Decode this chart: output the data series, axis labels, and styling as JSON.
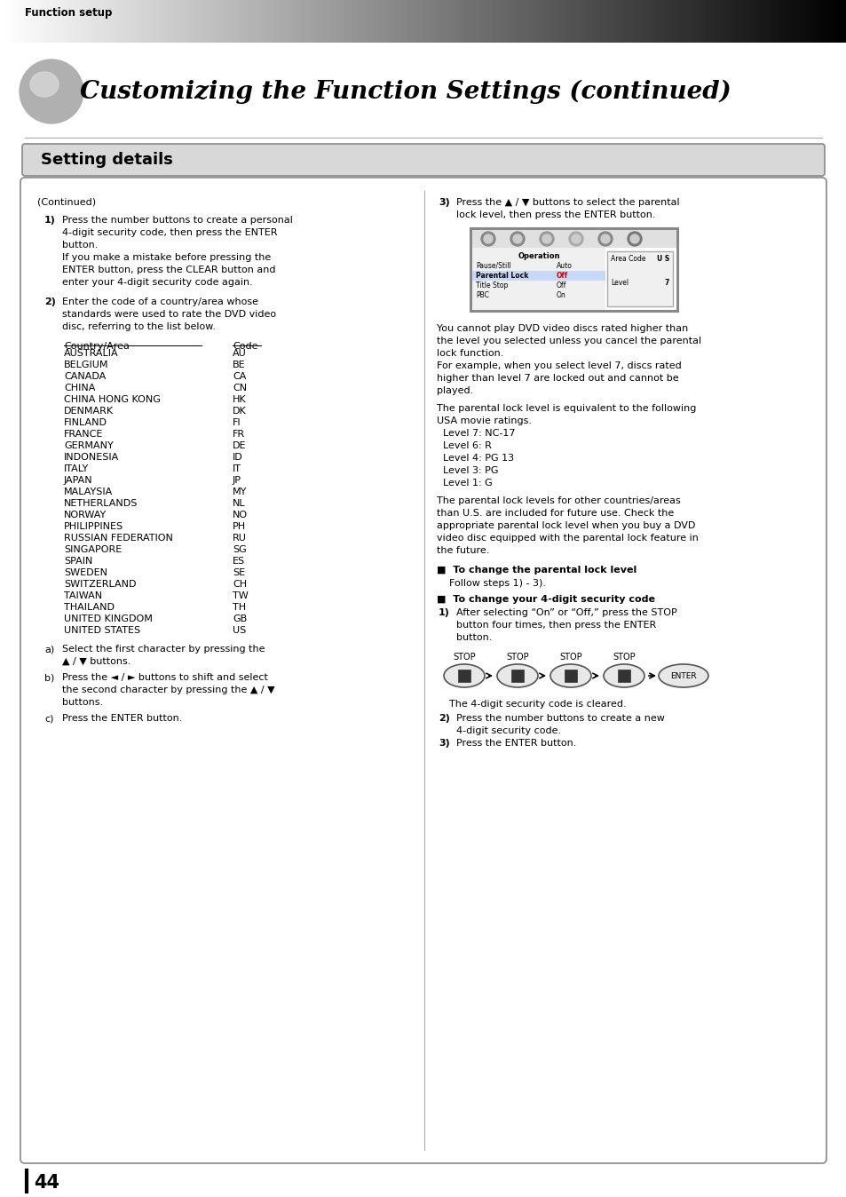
{
  "page_bg": "#ffffff",
  "header_text": "Function setup",
  "title": "Customizing the Function Settings (continued)",
  "section_header": "Setting details",
  "left_col": {
    "continued": "(Continued)",
    "item1_label": "1)",
    "item1_text_lines": [
      "Press the number buttons to create a personal",
      "4-digit security code, then press the ENTER",
      "button.",
      "If you make a mistake before pressing the",
      "ENTER button, press the CLEAR button and",
      "enter your 4-digit security code again."
    ],
    "item2_label": "2)",
    "item2_text_lines": [
      "Enter the code of a country/area whose",
      "standards were used to rate the DVD video",
      "disc, referring to the list below."
    ],
    "table_header": [
      "Country/Area",
      "Code"
    ],
    "table_data": [
      [
        "AUSTRALIA",
        "AU"
      ],
      [
        "BELGIUM",
        "BE"
      ],
      [
        "CANADA",
        "CA"
      ],
      [
        "CHINA",
        "CN"
      ],
      [
        "CHINA HONG KONG",
        "HK"
      ],
      [
        "DENMARK",
        "DK"
      ],
      [
        "FINLAND",
        "FI"
      ],
      [
        "FRANCE",
        "FR"
      ],
      [
        "GERMANY",
        "DE"
      ],
      [
        "INDONESIA",
        "ID"
      ],
      [
        "ITALY",
        "IT"
      ],
      [
        "JAPAN",
        "JP"
      ],
      [
        "MALAYSIA",
        "MY"
      ],
      [
        "NETHERLANDS",
        "NL"
      ],
      [
        "NORWAY",
        "NO"
      ],
      [
        "PHILIPPINES",
        "PH"
      ],
      [
        "RUSSIAN FEDERATION",
        "RU"
      ],
      [
        "SINGAPORE",
        "SG"
      ],
      [
        "SPAIN",
        "ES"
      ],
      [
        "SWEDEN",
        "SE"
      ],
      [
        "SWITZERLAND",
        "CH"
      ],
      [
        "TAIWAN",
        "TW"
      ],
      [
        "THAILAND",
        "TH"
      ],
      [
        "UNITED KINGDOM",
        "GB"
      ],
      [
        "UNITED STATES",
        "US"
      ]
    ],
    "item_a_label": "a)",
    "item_a_text_lines": [
      "Select the first character by pressing the",
      "▲ / ▼ buttons."
    ],
    "item_b_label": "b)",
    "item_b_text_lines": [
      "Press the ◄ / ► buttons to shift and select",
      "the second character by pressing the ▲ / ▼",
      "buttons."
    ],
    "item_c_label": "c)",
    "item_c_text": "Press the ENTER button."
  },
  "right_col": {
    "item3_label": "3)",
    "item3_text_lines": [
      "Press the ▲ / ▼ buttons to select the parental",
      "lock level, then press the ENTER button."
    ],
    "para1_lines": [
      "You cannot play DVD video discs rated higher than",
      "the level you selected unless you cancel the parental",
      "lock function.",
      "For example, when you select level 7, discs rated",
      "higher than level 7 are locked out and cannot be",
      "played."
    ],
    "para2_lines": [
      "The parental lock level is equivalent to the following",
      "USA movie ratings.",
      "  Level 7: NC-17",
      "  Level 6: R",
      "  Level 4: PG 13",
      "  Level 3: PG",
      "  Level 1: G"
    ],
    "para3_lines": [
      "The parental lock levels for other countries/areas",
      "than U.S. are included for future use. Check the",
      "appropriate parental lock level when you buy a DVD",
      "video disc equipped with the parental lock feature in",
      "the future."
    ],
    "bullet1_title": "■  To change the parental lock level",
    "bullet1_text": "Follow steps 1) - 3).",
    "bullet2_title": "■  To change your 4-digit security code",
    "bullet2_item1_label": "1)",
    "bullet2_item1_lines": [
      "After selecting “On” or “Off,” press the STOP",
      "button four times, then press the ENTER",
      "button."
    ],
    "stop_labels": [
      "STOP",
      "STOP",
      "STOP",
      "STOP"
    ],
    "enter_label": "ENTER",
    "stop_cleared": "The 4-digit security code is cleared.",
    "bullet2_item2_label": "2)",
    "bullet2_item2_lines": [
      "Press the number buttons to create a new",
      "4-digit security code."
    ],
    "bullet2_item3_label": "3)",
    "bullet2_item3_text": "Press the ENTER button."
  },
  "page_number": "44"
}
